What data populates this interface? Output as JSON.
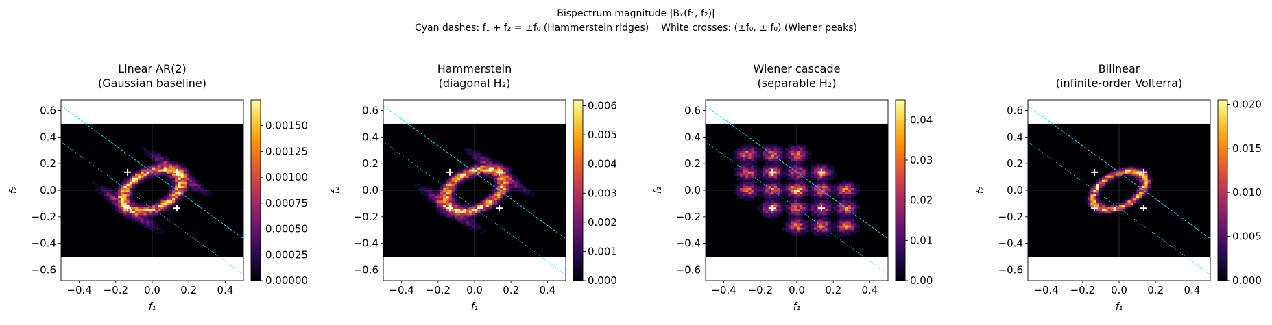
{
  "figure": {
    "title_line1": "Bispectrum magnitude |Bₓ(f₁, f₂)|",
    "title_line2": "Cyan dashes: f₁ + f₂ = ±f₀ (Hammerstein ridges)    White crosses: (±f₀, ± f₀) (Wiener peaks)"
  },
  "colors": {
    "background": "#000004",
    "ridge": "#00e5ff",
    "peak_marker": "#ffffff",
    "colormap": [
      "#000004",
      "#1b0c41",
      "#4a0c6b",
      "#781c6d",
      "#a52c60",
      "#cf4446",
      "#ed6925",
      "#fb9b06",
      "#f7d13d",
      "#fcffa4"
    ]
  },
  "chart_data": [
    {
      "type": "heatmap",
      "title_line1": "Linear AR(2)",
      "title_line2": "(Gaussian baseline)",
      "xlabel": "f₁",
      "ylabel": "f₂",
      "xlim": [
        -0.5,
        0.5
      ],
      "ylim": [
        -0.68,
        0.68
      ],
      "data_extent": {
        "f1": [
          -0.5,
          0.5
        ],
        "f2": [
          -0.5,
          0.5
        ]
      },
      "xticks": [
        "−0.4",
        "−0.2",
        "0.0",
        "0.2",
        "0.4"
      ],
      "yticks": [
        "0.6",
        "0.4",
        "0.2",
        "0.0",
        "−0.2",
        "−0.4",
        "−0.6"
      ],
      "colorbar": {
        "min": 0,
        "max": 0.00175,
        "ticks": [
          "0.00000",
          "0.00025",
          "0.00050",
          "0.00075",
          "0.00100",
          "0.00125",
          "0.00150"
        ]
      },
      "pattern": "ellipse",
      "ridges": [
        0.135,
        -0.135
      ],
      "peaks": [
        [
          -0.135,
          0.135
        ],
        [
          0.135,
          0.135
        ],
        [
          -0.135,
          -0.135
        ],
        [
          0.135,
          -0.135
        ]
      ]
    },
    {
      "type": "heatmap",
      "title_line1": "Hammerstein",
      "title_line2": "(diagonal H₂)",
      "xlabel": "f₁",
      "ylabel": "f₂",
      "xlim": [
        -0.5,
        0.5
      ],
      "ylim": [
        -0.68,
        0.68
      ],
      "data_extent": {
        "f1": [
          -0.5,
          0.5
        ],
        "f2": [
          -0.5,
          0.5
        ]
      },
      "xticks": [
        "−0.4",
        "−0.2",
        "0.0",
        "0.2",
        "0.4"
      ],
      "yticks": [
        "0.6",
        "0.4",
        "0.2",
        "0.0",
        "−0.2",
        "−0.4",
        "−0.6"
      ],
      "colorbar": {
        "min": 0,
        "max": 0.0062,
        "ticks": [
          "0.000",
          "0.001",
          "0.002",
          "0.003",
          "0.004",
          "0.005",
          "0.006"
        ]
      },
      "pattern": "ellipse",
      "ridges": [
        0.135,
        -0.135
      ],
      "peaks": [
        [
          -0.135,
          0.135
        ],
        [
          0.135,
          0.135
        ],
        [
          -0.135,
          -0.135
        ],
        [
          0.135,
          -0.135
        ]
      ]
    },
    {
      "type": "heatmap",
      "title_line1": "Wiener cascade",
      "title_line2": "(separable H₂)",
      "xlabel": "f₁",
      "ylabel": "f₂",
      "xlim": [
        -0.5,
        0.5
      ],
      "ylim": [
        -0.68,
        0.68
      ],
      "data_extent": {
        "f1": [
          -0.5,
          0.5
        ],
        "f2": [
          -0.5,
          0.5
        ]
      },
      "xticks": [
        "−0.4",
        "−0.2",
        "0.0",
        "0.2",
        "0.4"
      ],
      "yticks": [
        "0.6",
        "0.4",
        "0.2",
        "0.0",
        "−0.2",
        "−0.4",
        "−0.6"
      ],
      "colorbar": {
        "min": 0,
        "max": 0.045,
        "ticks": [
          "0.00",
          "0.01",
          "0.02",
          "0.03",
          "0.04"
        ]
      },
      "pattern": "grid",
      "ridges": [
        0.135,
        -0.135
      ],
      "peaks": [
        [
          -0.135,
          0.135
        ],
        [
          0.135,
          0.135
        ],
        [
          -0.135,
          -0.135
        ],
        [
          0.135,
          -0.135
        ]
      ]
    },
    {
      "type": "heatmap",
      "title_line1": "Bilinear",
      "title_line2": "(infinite-order Volterra)",
      "xlabel": "f₁",
      "ylabel": "f₂",
      "xlim": [
        -0.5,
        0.5
      ],
      "ylim": [
        -0.68,
        0.68
      ],
      "data_extent": {
        "f1": [
          -0.5,
          0.5
        ],
        "f2": [
          -0.5,
          0.5
        ]
      },
      "xticks": [
        "−0.4",
        "−0.2",
        "0.0",
        "0.2",
        "0.4"
      ],
      "yticks": [
        "0.6",
        "0.4",
        "0.2",
        "0.0",
        "−0.2",
        "−0.4",
        "−0.6"
      ],
      "colorbar": {
        "min": 0,
        "max": 0.0205,
        "ticks": [
          "0.000",
          "0.005",
          "0.010",
          "0.015",
          "0.020"
        ]
      },
      "pattern": "small-ellipse",
      "ridges": [
        0.135,
        -0.135
      ],
      "peaks": [
        [
          -0.135,
          0.135
        ],
        [
          0.135,
          0.135
        ],
        [
          -0.135,
          -0.135
        ],
        [
          0.135,
          -0.135
        ]
      ]
    }
  ]
}
